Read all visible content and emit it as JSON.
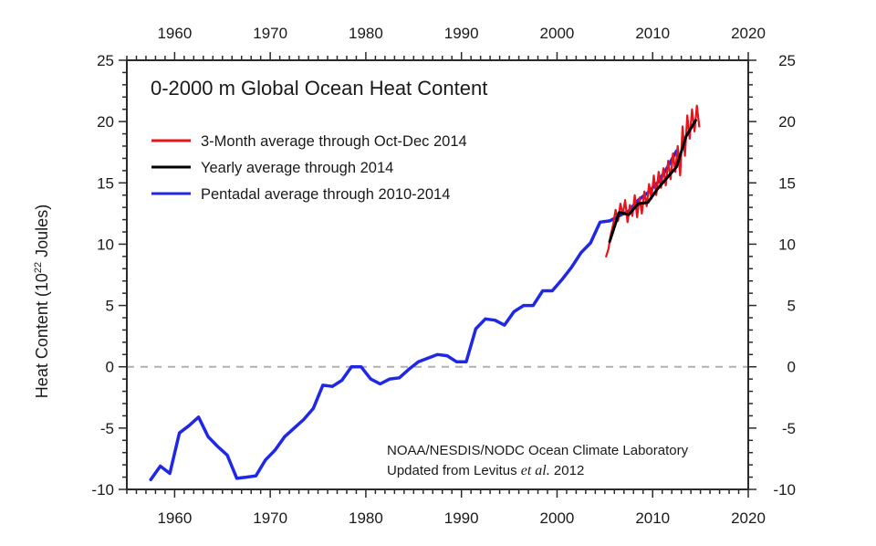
{
  "chart_data": {
    "type": "line",
    "title": "0-2000 m Global Ocean Heat Content",
    "xlabel": "",
    "ylabel": "Heat Content (10^22 Joules)",
    "ylabel_parts": {
      "prefix": "Heat Content (10",
      "sup": "22",
      "suffix": " Joules)"
    },
    "xlim": [
      1955,
      2020
    ],
    "ylim": [
      -10,
      25
    ],
    "x_ticks": [
      1960,
      1970,
      1980,
      1990,
      2000,
      2010,
      2020
    ],
    "x_tick_labels": [
      "1960",
      "1970",
      "1980",
      "1990",
      "2000",
      "2010",
      "2020"
    ],
    "y_ticks": [
      -10,
      -5,
      0,
      5,
      10,
      15,
      20,
      25
    ],
    "y_tick_labels": [
      "-10",
      "-5",
      "0",
      "5",
      "10",
      "15",
      "20",
      "25"
    ],
    "x_minor_step": 1,
    "y_minor_step": 1.5,
    "zero_line": {
      "value": 0,
      "style": "dashed",
      "color": "#b0b0b0"
    },
    "grid": false,
    "legend_placement": "top-left",
    "series": [
      {
        "name": "3-Month average through Oct-Dec 2014",
        "color": "#e8141c",
        "x": [
          2005.125,
          2005.375,
          2005.625,
          2005.875,
          2006.125,
          2006.375,
          2006.625,
          2006.875,
          2007.125,
          2007.375,
          2007.625,
          2007.875,
          2008.125,
          2008.375,
          2008.625,
          2008.875,
          2009.125,
          2009.375,
          2009.625,
          2009.875,
          2010.125,
          2010.375,
          2010.625,
          2010.875,
          2011.125,
          2011.375,
          2011.625,
          2011.875,
          2012.125,
          2012.375,
          2012.625,
          2012.875,
          2013.125,
          2013.375,
          2013.625,
          2013.875,
          2014.125,
          2014.375,
          2014.625,
          2014.875
        ],
        "values": [
          9.0,
          9.6,
          10.8,
          11.6,
          12.8,
          11.9,
          13.3,
          12.4,
          13.6,
          11.8,
          13.2,
          12.3,
          14.0,
          12.2,
          13.8,
          12.5,
          14.3,
          13.1,
          14.9,
          13.7,
          15.6,
          14.0,
          15.9,
          14.6,
          16.2,
          14.8,
          16.8,
          15.3,
          17.4,
          15.9,
          18.0,
          15.6,
          19.6,
          17.2,
          20.5,
          18.6,
          21.0,
          19.2,
          21.3,
          19.6
        ]
      },
      {
        "name": "Yearly average through 2014",
        "color": "#000000",
        "x": [
          2005.5,
          2006.5,
          2007.5,
          2008.5,
          2009.5,
          2010.5,
          2011.5,
          2012.5,
          2013.5,
          2014.5
        ],
        "values": [
          10.2,
          12.6,
          12.4,
          13.3,
          13.4,
          14.5,
          15.4,
          16.3,
          18.8,
          20.1
        ]
      },
      {
        "name": "Pentadal average through 2010-2014",
        "color": "#1f28e6",
        "x": [
          1957.5,
          1958.5,
          1959.5,
          1960.5,
          1961.5,
          1962.5,
          1963.5,
          1964.5,
          1965.5,
          1966.5,
          1967.5,
          1968.5,
          1969.5,
          1970.5,
          1971.5,
          1972.5,
          1973.5,
          1974.5,
          1975.5,
          1976.5,
          1977.5,
          1978.5,
          1979.5,
          1980.5,
          1981.5,
          1982.5,
          1983.5,
          1984.5,
          1985.5,
          1986.5,
          1987.5,
          1988.5,
          1989.5,
          1990.5,
          1991.5,
          1992.5,
          1993.5,
          1994.5,
          1995.5,
          1996.5,
          1997.5,
          1998.5,
          1999.5,
          2000.5,
          2001.5,
          2002.5,
          2003.5,
          2004.5,
          2005.5,
          2006.5,
          2007.5,
          2008.5,
          2009.5,
          2010.5,
          2011.5,
          2012.5
        ],
        "values": [
          -9.2,
          -8.1,
          -8.7,
          -5.4,
          -4.8,
          -4.1,
          -5.7,
          -6.5,
          -7.2,
          -9.1,
          -9.0,
          -8.9,
          -7.6,
          -6.8,
          -5.7,
          -5.0,
          -4.3,
          -3.4,
          -1.5,
          -1.6,
          -1.1,
          0.0,
          0.0,
          -1.0,
          -1.4,
          -1.0,
          -0.9,
          -0.2,
          0.4,
          0.7,
          1.0,
          0.9,
          0.4,
          0.4,
          3.1,
          3.9,
          3.8,
          3.4,
          4.5,
          5.0,
          5.0,
          6.2,
          6.2,
          7.1,
          8.1,
          9.3,
          10.1,
          11.8,
          11.9,
          12.3,
          12.7,
          13.6,
          14.2,
          15.0,
          16.2,
          17.6
        ]
      }
    ],
    "annotations": [
      {
        "text": "NOAA/NESDIS/NODC Ocean Climate Laboratory"
      },
      {
        "text_prefix": "Updated from Levitus ",
        "text_italic": "et al.",
        "text_suffix": " 2012"
      }
    ]
  }
}
